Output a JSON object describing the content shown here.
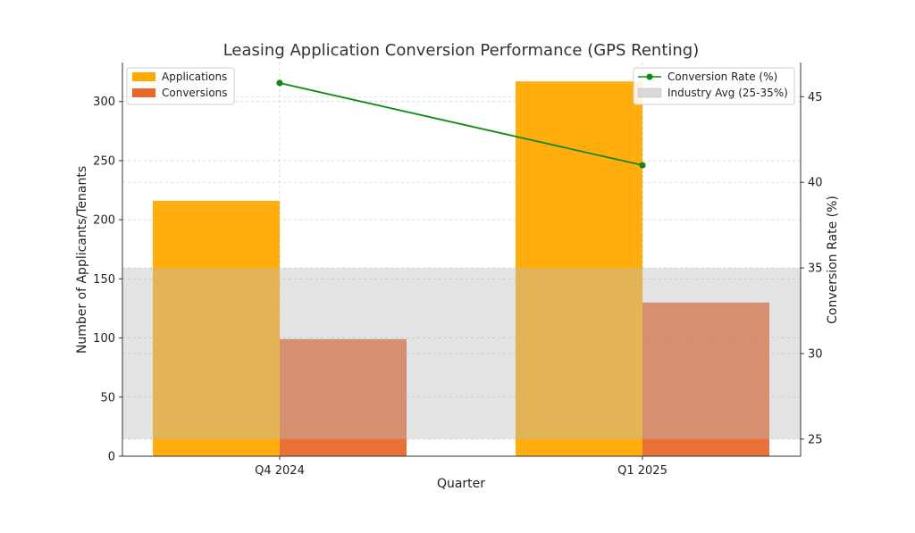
{
  "chart_data": {
    "type": "bar",
    "title": "Leasing Application Conversion Performance (GPS Renting)",
    "xlabel": "Quarter",
    "ylabel": "Number of Applicants/Tenants",
    "y2label": "Conversion Rate (%)",
    "categories": [
      "Q4 2024",
      "Q1 2025"
    ],
    "series": [
      {
        "name": "Applications",
        "values": [
          216,
          317
        ],
        "color": "#FFAA00",
        "axis": "left"
      },
      {
        "name": "Conversions",
        "values": [
          99,
          130
        ],
        "color": "#E8682C",
        "axis": "left"
      }
    ],
    "line_series": {
      "name": "Conversion Rate (%)",
      "values": [
        45.8,
        41.0
      ],
      "color": "#118811",
      "axis": "right"
    },
    "band": {
      "name": "Industry Avg (25-35%)",
      "range": [
        25,
        35
      ],
      "color": "#d9d9d9"
    },
    "ylim": [
      0,
      333
    ],
    "y2lim": [
      24,
      47
    ],
    "yticks": [
      0,
      50,
      100,
      150,
      200,
      250,
      300
    ],
    "y2ticks": [
      25,
      30,
      35,
      40,
      45
    ],
    "grid": true,
    "legend_left": "top-left",
    "legend_right": "top-right"
  }
}
